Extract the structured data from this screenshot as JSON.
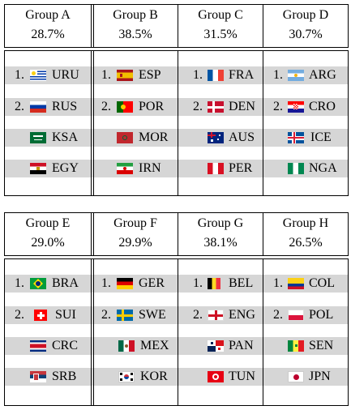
{
  "groups_top": [
    {
      "name": "Group A",
      "pct": "28.7%",
      "teams": [
        {
          "rank": "1.",
          "code": "URU",
          "flag": "uruguay-flag-icon"
        },
        {
          "rank": "2.",
          "code": "RUS",
          "flag": "russia-flag-icon"
        },
        {
          "rank": "",
          "code": "KSA",
          "flag": "saudi-arabia-flag-icon"
        },
        {
          "rank": "",
          "code": "EGY",
          "flag": "egypt-flag-icon"
        }
      ]
    },
    {
      "name": "Group B",
      "pct": "38.5%",
      "teams": [
        {
          "rank": "1.",
          "code": "ESP",
          "flag": "spain-flag-icon"
        },
        {
          "rank": "2.",
          "code": "POR",
          "flag": "portugal-flag-icon"
        },
        {
          "rank": "",
          "code": "MOR",
          "flag": "morocco-flag-icon"
        },
        {
          "rank": "",
          "code": "IRN",
          "flag": "iran-flag-icon"
        }
      ]
    },
    {
      "name": "Group C",
      "pct": "31.5%",
      "teams": [
        {
          "rank": "1.",
          "code": "FRA",
          "flag": "france-flag-icon"
        },
        {
          "rank": "2.",
          "code": "DEN",
          "flag": "denmark-flag-icon"
        },
        {
          "rank": "",
          "code": "AUS",
          "flag": "australia-flag-icon"
        },
        {
          "rank": "",
          "code": "PER",
          "flag": "peru-flag-icon"
        }
      ]
    },
    {
      "name": "Group D",
      "pct": "30.7%",
      "teams": [
        {
          "rank": "1.",
          "code": "ARG",
          "flag": "argentina-flag-icon"
        },
        {
          "rank": "2.",
          "code": "CRO",
          "flag": "croatia-flag-icon"
        },
        {
          "rank": "",
          "code": "ICE",
          "flag": "iceland-flag-icon"
        },
        {
          "rank": "",
          "code": "NGA",
          "flag": "nigeria-flag-icon"
        }
      ]
    }
  ],
  "groups_bottom": [
    {
      "name": "Group E",
      "pct": "29.0%",
      "teams": [
        {
          "rank": "1.",
          "code": "BRA",
          "flag": "brazil-flag-icon"
        },
        {
          "rank": "2.",
          "code": "SUI",
          "flag": "switzerland-flag-icon"
        },
        {
          "rank": "",
          "code": "CRC",
          "flag": "costa-rica-flag-icon"
        },
        {
          "rank": "",
          "code": "SRB",
          "flag": "serbia-flag-icon"
        }
      ]
    },
    {
      "name": "Group F",
      "pct": "29.9%",
      "teams": [
        {
          "rank": "1.",
          "code": "GER",
          "flag": "germany-flag-icon"
        },
        {
          "rank": "2.",
          "code": "SWE",
          "flag": "sweden-flag-icon"
        },
        {
          "rank": "",
          "code": "MEX",
          "flag": "mexico-flag-icon"
        },
        {
          "rank": "",
          "code": "KOR",
          "flag": "south-korea-flag-icon"
        }
      ]
    },
    {
      "name": "Group G",
      "pct": "38.1%",
      "teams": [
        {
          "rank": "1.",
          "code": "BEL",
          "flag": "belgium-flag-icon"
        },
        {
          "rank": "2.",
          "code": "ENG",
          "flag": "england-flag-icon"
        },
        {
          "rank": "",
          "code": "PAN",
          "flag": "panama-flag-icon"
        },
        {
          "rank": "",
          "code": "TUN",
          "flag": "tunisia-flag-icon"
        }
      ]
    },
    {
      "name": "Group H",
      "pct": "26.5%",
      "teams": [
        {
          "rank": "1.",
          "code": "COL",
          "flag": "colombia-flag-icon"
        },
        {
          "rank": "2.",
          "code": "POL",
          "flag": "poland-flag-icon"
        },
        {
          "rank": "",
          "code": "SEN",
          "flag": "senegal-flag-icon"
        },
        {
          "rank": "",
          "code": "JPN",
          "flag": "japan-flag-icon"
        }
      ]
    }
  ]
}
